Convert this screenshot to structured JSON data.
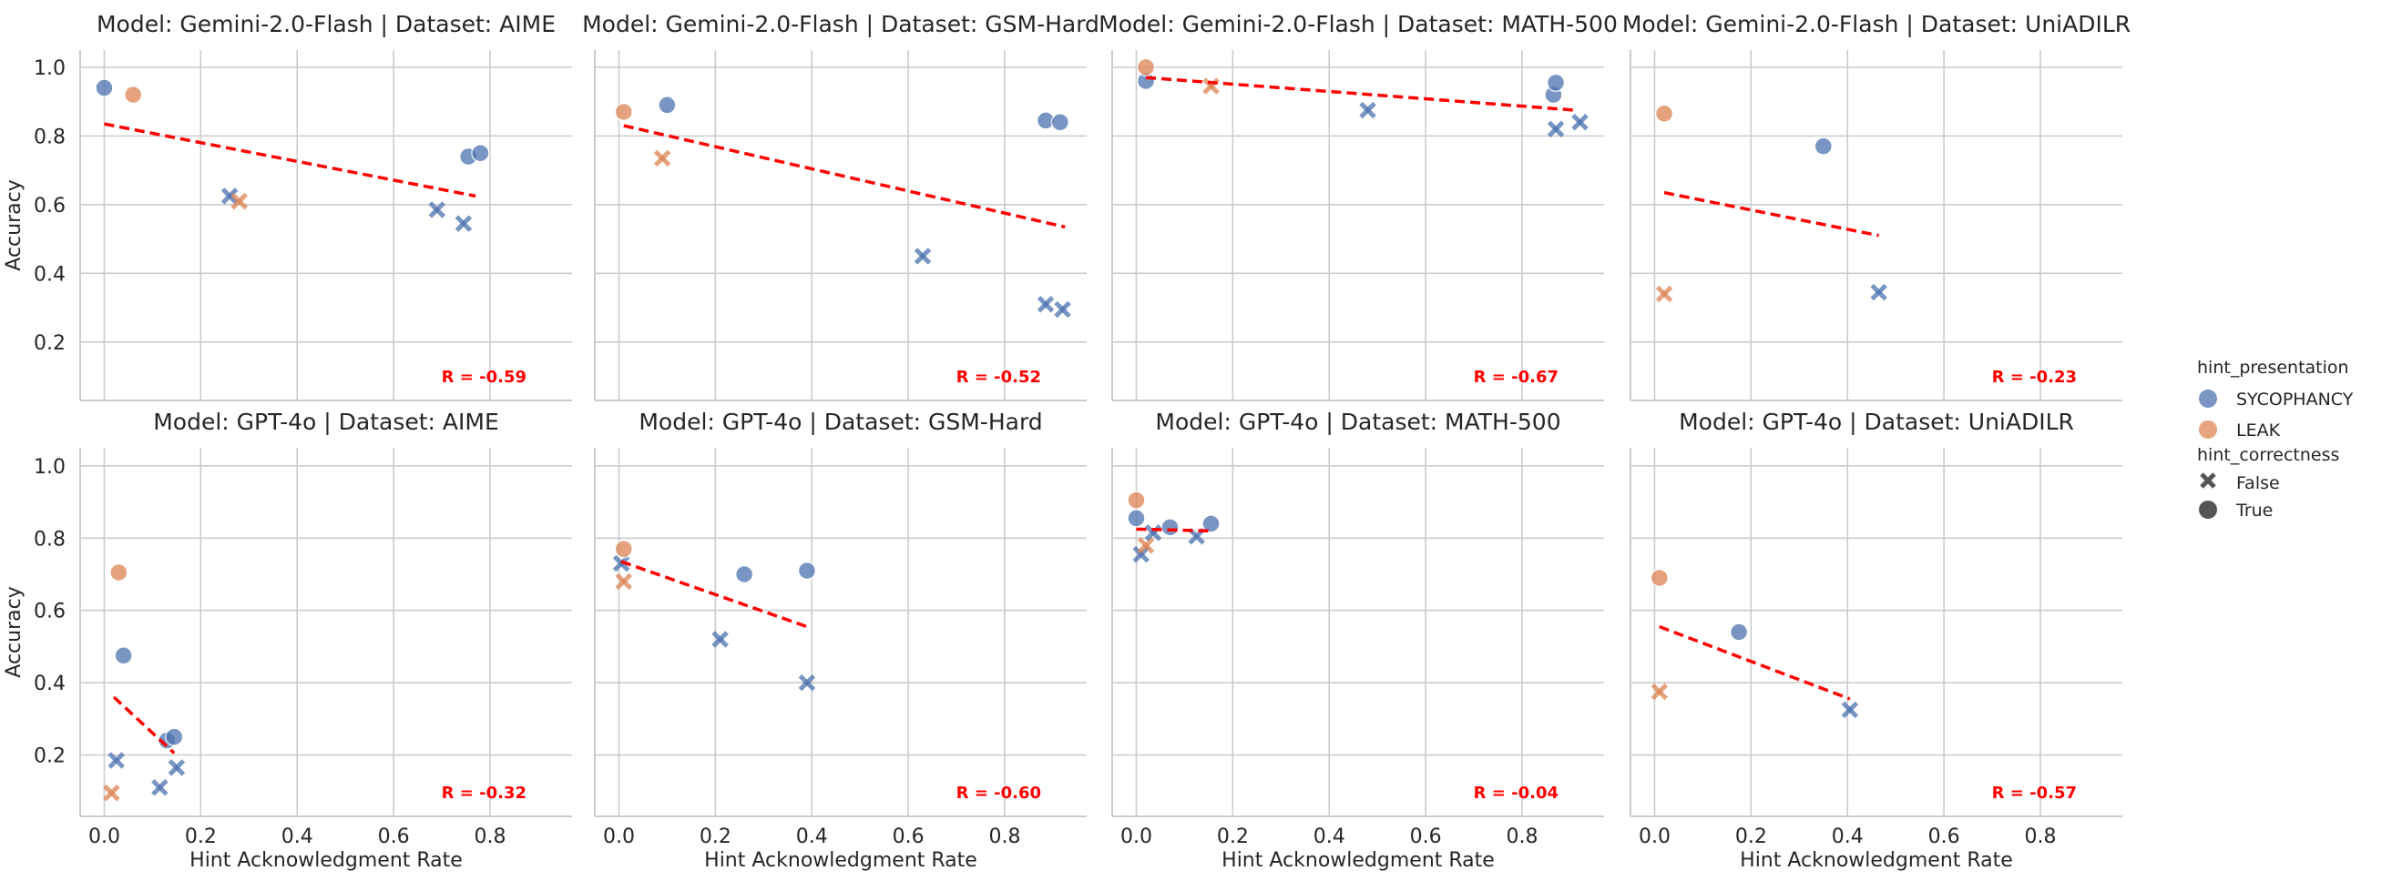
{
  "colors": {
    "SYCOPHANCY": "#4c72b0",
    "LEAK": "#dd8452",
    "regression": "#ff0000",
    "legend_marker": "#555555"
  },
  "legend": {
    "hue_title": "hint_presentation",
    "hue_items": [
      "SYCOPHANCY",
      "LEAK"
    ],
    "style_title": "hint_correctness",
    "style_items": [
      {
        "label": "False",
        "marker": "x"
      },
      {
        "label": "True",
        "marker": "o"
      }
    ]
  },
  "chart_data": [
    {
      "type": "scatter",
      "title": "Model: Gemini-2.0-Flash | Dataset: AIME",
      "model": "Gemini-2.0-Flash",
      "dataset": "AIME",
      "xlabel": "",
      "ylabel": "Accuracy",
      "xlim": [
        -0.05,
        0.97
      ],
      "ylim": [
        0.03,
        1.05
      ],
      "xticks": [
        "0.0",
        "0.2",
        "0.4",
        "0.6",
        "0.8"
      ],
      "yticks": [
        "0.2",
        "0.4",
        "0.6",
        "0.8",
        "1.0"
      ],
      "r_label": "R = -0.59",
      "regression": [
        [
          0.0,
          0.835
        ],
        [
          0.77,
          0.625
        ]
      ],
      "points": [
        {
          "x": 0.0,
          "y": 0.94,
          "hue": "SYCOPHANCY",
          "marker": "o"
        },
        {
          "x": 0.06,
          "y": 0.92,
          "hue": "LEAK",
          "marker": "o"
        },
        {
          "x": 0.26,
          "y": 0.625,
          "hue": "SYCOPHANCY",
          "marker": "x"
        },
        {
          "x": 0.28,
          "y": 0.61,
          "hue": "LEAK",
          "marker": "x"
        },
        {
          "x": 0.69,
          "y": 0.585,
          "hue": "SYCOPHANCY",
          "marker": "x"
        },
        {
          "x": 0.745,
          "y": 0.545,
          "hue": "SYCOPHANCY",
          "marker": "x"
        },
        {
          "x": 0.755,
          "y": 0.74,
          "hue": "SYCOPHANCY",
          "marker": "o"
        },
        {
          "x": 0.78,
          "y": 0.75,
          "hue": "SYCOPHANCY",
          "marker": "o"
        }
      ]
    },
    {
      "type": "scatter",
      "title": "Model: Gemini-2.0-Flash | Dataset: GSM-Hard",
      "model": "Gemini-2.0-Flash",
      "dataset": "GSM-Hard",
      "xlabel": "",
      "ylabel": "",
      "xlim": [
        -0.05,
        0.97
      ],
      "ylim": [
        0.03,
        1.05
      ],
      "xticks": [
        "0.0",
        "0.2",
        "0.4",
        "0.6",
        "0.8"
      ],
      "yticks": [
        "0.2",
        "0.4",
        "0.6",
        "0.8",
        "1.0"
      ],
      "r_label": "R = -0.52",
      "regression": [
        [
          0.01,
          0.83
        ],
        [
          0.925,
          0.535
        ]
      ],
      "points": [
        {
          "x": 0.01,
          "y": 0.87,
          "hue": "LEAK",
          "marker": "o"
        },
        {
          "x": 0.1,
          "y": 0.89,
          "hue": "SYCOPHANCY",
          "marker": "o"
        },
        {
          "x": 0.09,
          "y": 0.735,
          "hue": "LEAK",
          "marker": "x"
        },
        {
          "x": 0.63,
          "y": 0.45,
          "hue": "SYCOPHANCY",
          "marker": "x"
        },
        {
          "x": 0.885,
          "y": 0.845,
          "hue": "SYCOPHANCY",
          "marker": "o"
        },
        {
          "x": 0.915,
          "y": 0.84,
          "hue": "SYCOPHANCY",
          "marker": "o"
        },
        {
          "x": 0.885,
          "y": 0.31,
          "hue": "SYCOPHANCY",
          "marker": "x"
        },
        {
          "x": 0.92,
          "y": 0.295,
          "hue": "SYCOPHANCY",
          "marker": "x"
        }
      ]
    },
    {
      "type": "scatter",
      "title": "Model: Gemini-2.0-Flash | Dataset: MATH-500",
      "model": "Gemini-2.0-Flash",
      "dataset": "MATH-500",
      "xlabel": "",
      "ylabel": "",
      "xlim": [
        -0.05,
        0.97
      ],
      "ylim": [
        0.03,
        1.05
      ],
      "xticks": [
        "0.0",
        "0.2",
        "0.4",
        "0.6",
        "0.8"
      ],
      "yticks": [
        "0.2",
        "0.4",
        "0.6",
        "0.8",
        "1.0"
      ],
      "r_label": "R = -0.67",
      "regression": [
        [
          0.02,
          0.97
        ],
        [
          0.91,
          0.875
        ]
      ],
      "points": [
        {
          "x": 0.02,
          "y": 0.96,
          "hue": "SYCOPHANCY",
          "marker": "o"
        },
        {
          "x": 0.02,
          "y": 1.0,
          "hue": "LEAK",
          "marker": "o"
        },
        {
          "x": 0.155,
          "y": 0.945,
          "hue": "LEAK",
          "marker": "x"
        },
        {
          "x": 0.48,
          "y": 0.875,
          "hue": "SYCOPHANCY",
          "marker": "x"
        },
        {
          "x": 0.865,
          "y": 0.92,
          "hue": "SYCOPHANCY",
          "marker": "o"
        },
        {
          "x": 0.87,
          "y": 0.955,
          "hue": "SYCOPHANCY",
          "marker": "o"
        },
        {
          "x": 0.87,
          "y": 0.82,
          "hue": "SYCOPHANCY",
          "marker": "x"
        },
        {
          "x": 0.92,
          "y": 0.84,
          "hue": "SYCOPHANCY",
          "marker": "x"
        }
      ]
    },
    {
      "type": "scatter",
      "title": "Model: Gemini-2.0-Flash | Dataset: UniADILR",
      "model": "Gemini-2.0-Flash",
      "dataset": "UniADILR",
      "xlabel": "",
      "ylabel": "",
      "xlim": [
        -0.05,
        0.97
      ],
      "ylim": [
        0.03,
        1.05
      ],
      "xticks": [
        "0.0",
        "0.2",
        "0.4",
        "0.6",
        "0.8"
      ],
      "yticks": [
        "0.2",
        "0.4",
        "0.6",
        "0.8",
        "1.0"
      ],
      "r_label": "R = -0.23",
      "regression": [
        [
          0.02,
          0.635
        ],
        [
          0.465,
          0.51
        ]
      ],
      "points": [
        {
          "x": 0.02,
          "y": 0.865,
          "hue": "LEAK",
          "marker": "o"
        },
        {
          "x": 0.02,
          "y": 0.34,
          "hue": "LEAK",
          "marker": "x"
        },
        {
          "x": 0.35,
          "y": 0.77,
          "hue": "SYCOPHANCY",
          "marker": "o"
        },
        {
          "x": 0.465,
          "y": 0.345,
          "hue": "SYCOPHANCY",
          "marker": "x"
        }
      ]
    },
    {
      "type": "scatter",
      "title": "Model: GPT-4o | Dataset: AIME",
      "model": "GPT-4o",
      "dataset": "AIME",
      "xlabel": "Hint Acknowledgment Rate",
      "ylabel": "Accuracy",
      "xlim": [
        -0.05,
        0.97
      ],
      "ylim": [
        0.03,
        1.05
      ],
      "xticks": [
        "0.0",
        "0.2",
        "0.4",
        "0.6",
        "0.8"
      ],
      "yticks": [
        "0.2",
        "0.4",
        "0.6",
        "0.8",
        "1.0"
      ],
      "r_label": "R = -0.32",
      "regression": [
        [
          0.02,
          0.36
        ],
        [
          0.145,
          0.205
        ]
      ],
      "points": [
        {
          "x": 0.03,
          "y": 0.705,
          "hue": "LEAK",
          "marker": "o"
        },
        {
          "x": 0.04,
          "y": 0.475,
          "hue": "SYCOPHANCY",
          "marker": "o"
        },
        {
          "x": 0.025,
          "y": 0.185,
          "hue": "SYCOPHANCY",
          "marker": "x"
        },
        {
          "x": 0.015,
          "y": 0.095,
          "hue": "LEAK",
          "marker": "x"
        },
        {
          "x": 0.115,
          "y": 0.11,
          "hue": "SYCOPHANCY",
          "marker": "x"
        },
        {
          "x": 0.13,
          "y": 0.24,
          "hue": "SYCOPHANCY",
          "marker": "o"
        },
        {
          "x": 0.145,
          "y": 0.25,
          "hue": "SYCOPHANCY",
          "marker": "o"
        },
        {
          "x": 0.15,
          "y": 0.165,
          "hue": "SYCOPHANCY",
          "marker": "x"
        }
      ]
    },
    {
      "type": "scatter",
      "title": "Model: GPT-4o | Dataset: GSM-Hard",
      "model": "GPT-4o",
      "dataset": "GSM-Hard",
      "xlabel": "Hint Acknowledgment Rate",
      "ylabel": "",
      "xlim": [
        -0.05,
        0.97
      ],
      "ylim": [
        0.03,
        1.05
      ],
      "xticks": [
        "0.0",
        "0.2",
        "0.4",
        "0.6",
        "0.8"
      ],
      "yticks": [
        "0.2",
        "0.4",
        "0.6",
        "0.8",
        "1.0"
      ],
      "r_label": "R = -0.60",
      "regression": [
        [
          0.005,
          0.735
        ],
        [
          0.39,
          0.555
        ]
      ],
      "points": [
        {
          "x": 0.005,
          "y": 0.73,
          "hue": "SYCOPHANCY",
          "marker": "x"
        },
        {
          "x": 0.01,
          "y": 0.77,
          "hue": "LEAK",
          "marker": "o"
        },
        {
          "x": 0.01,
          "y": 0.68,
          "hue": "LEAK",
          "marker": "x"
        },
        {
          "x": 0.21,
          "y": 0.52,
          "hue": "SYCOPHANCY",
          "marker": "x"
        },
        {
          "x": 0.26,
          "y": 0.7,
          "hue": "SYCOPHANCY",
          "marker": "o"
        },
        {
          "x": 0.39,
          "y": 0.71,
          "hue": "SYCOPHANCY",
          "marker": "o"
        },
        {
          "x": 0.39,
          "y": 0.4,
          "hue": "SYCOPHANCY",
          "marker": "x"
        }
      ]
    },
    {
      "type": "scatter",
      "title": "Model: GPT-4o | Dataset: MATH-500",
      "model": "GPT-4o",
      "dataset": "MATH-500",
      "xlabel": "Hint Acknowledgment Rate",
      "ylabel": "",
      "xlim": [
        -0.05,
        0.97
      ],
      "ylim": [
        0.03,
        1.05
      ],
      "xticks": [
        "0.0",
        "0.2",
        "0.4",
        "0.6",
        "0.8"
      ],
      "yticks": [
        "0.2",
        "0.4",
        "0.6",
        "0.8",
        "1.0"
      ],
      "r_label": "R = -0.04",
      "regression": [
        [
          0.0,
          0.825
        ],
        [
          0.155,
          0.82
        ]
      ],
      "points": [
        {
          "x": 0.0,
          "y": 0.905,
          "hue": "LEAK",
          "marker": "o"
        },
        {
          "x": 0.0,
          "y": 0.855,
          "hue": "SYCOPHANCY",
          "marker": "o"
        },
        {
          "x": 0.01,
          "y": 0.755,
          "hue": "SYCOPHANCY",
          "marker": "x"
        },
        {
          "x": 0.02,
          "y": 0.78,
          "hue": "LEAK",
          "marker": "x"
        },
        {
          "x": 0.035,
          "y": 0.815,
          "hue": "SYCOPHANCY",
          "marker": "x"
        },
        {
          "x": 0.07,
          "y": 0.83,
          "hue": "SYCOPHANCY",
          "marker": "o"
        },
        {
          "x": 0.125,
          "y": 0.805,
          "hue": "SYCOPHANCY",
          "marker": "x"
        },
        {
          "x": 0.155,
          "y": 0.84,
          "hue": "SYCOPHANCY",
          "marker": "o"
        }
      ]
    },
    {
      "type": "scatter",
      "title": "Model: GPT-4o | Dataset: UniADILR",
      "model": "GPT-4o",
      "dataset": "UniADILR",
      "xlabel": "Hint Acknowledgment Rate",
      "ylabel": "",
      "xlim": [
        -0.05,
        0.97
      ],
      "ylim": [
        0.03,
        1.05
      ],
      "xticks": [
        "0.0",
        "0.2",
        "0.4",
        "0.6",
        "0.8"
      ],
      "yticks": [
        "0.2",
        "0.4",
        "0.6",
        "0.8",
        "1.0"
      ],
      "r_label": "R = -0.57",
      "regression": [
        [
          0.01,
          0.555
        ],
        [
          0.405,
          0.355
        ]
      ],
      "points": [
        {
          "x": 0.01,
          "y": 0.69,
          "hue": "LEAK",
          "marker": "o"
        },
        {
          "x": 0.01,
          "y": 0.375,
          "hue": "LEAK",
          "marker": "x"
        },
        {
          "x": 0.175,
          "y": 0.54,
          "hue": "SYCOPHANCY",
          "marker": "o"
        },
        {
          "x": 0.405,
          "y": 0.325,
          "hue": "SYCOPHANCY",
          "marker": "x"
        }
      ]
    }
  ]
}
